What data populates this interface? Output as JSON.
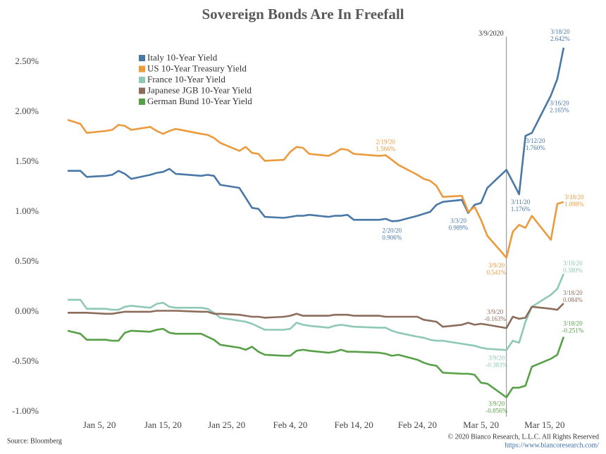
{
  "chart_data": {
    "type": "line",
    "title": "Sovereign Bonds Are In Freefall",
    "x": [
      "2019-12-31",
      "2020-01-02",
      "2020-01-03",
      "2020-01-06",
      "2020-01-07",
      "2020-01-08",
      "2020-01-09",
      "2020-01-10",
      "2020-01-13",
      "2020-01-14",
      "2020-01-15",
      "2020-01-16",
      "2020-01-17",
      "2020-01-21",
      "2020-01-22",
      "2020-01-23",
      "2020-01-24",
      "2020-01-27",
      "2020-01-28",
      "2020-01-29",
      "2020-01-30",
      "2020-01-31",
      "2020-02-03",
      "2020-02-04",
      "2020-02-05",
      "2020-02-06",
      "2020-02-07",
      "2020-02-10",
      "2020-02-11",
      "2020-02-12",
      "2020-02-13",
      "2020-02-14",
      "2020-02-18",
      "2020-02-19",
      "2020-02-20",
      "2020-02-21",
      "2020-02-24",
      "2020-02-25",
      "2020-02-26",
      "2020-02-27",
      "2020-02-28",
      "2020-03-02",
      "2020-03-03",
      "2020-03-04",
      "2020-03-05",
      "2020-03-06",
      "2020-03-09",
      "2020-03-10",
      "2020-03-11",
      "2020-03-12",
      "2020-03-13",
      "2020-03-16",
      "2020-03-17",
      "2020-03-18"
    ],
    "series": [
      {
        "name": "Italy 10-Year Yield",
        "color": "#4a78a6",
        "values": [
          1.41,
          1.41,
          1.35,
          1.36,
          1.37,
          1.41,
          1.38,
          1.33,
          1.37,
          1.39,
          1.4,
          1.43,
          1.38,
          1.36,
          1.37,
          1.36,
          1.27,
          1.24,
          1.14,
          1.04,
          1.03,
          0.95,
          0.94,
          0.95,
          0.96,
          0.96,
          0.97,
          0.95,
          0.96,
          0.96,
          0.97,
          0.92,
          0.92,
          0.93,
          0.906,
          0.91,
          0.96,
          0.98,
          1.0,
          1.07,
          1.1,
          1.12,
          0.989,
          1.07,
          1.09,
          1.24,
          1.42,
          1.3,
          1.176,
          1.76,
          1.79,
          2.165,
          2.33,
          2.642
        ]
      },
      {
        "name": "US 10-Year Treasury Yield",
        "color": "#eb9a3d",
        "values": [
          1.92,
          1.88,
          1.79,
          1.81,
          1.82,
          1.87,
          1.86,
          1.82,
          1.85,
          1.81,
          1.78,
          1.81,
          1.83,
          1.78,
          1.77,
          1.74,
          1.69,
          1.61,
          1.65,
          1.59,
          1.58,
          1.51,
          1.52,
          1.6,
          1.65,
          1.64,
          1.58,
          1.56,
          1.59,
          1.63,
          1.62,
          1.58,
          1.56,
          1.566,
          1.52,
          1.47,
          1.37,
          1.33,
          1.31,
          1.26,
          1.15,
          1.16,
          1.0,
          1.05,
          0.92,
          0.76,
          0.541,
          0.8,
          0.87,
          0.84,
          0.96,
          0.72,
          1.08,
          1.098
        ]
      },
      {
        "name": "France 10-Year Yield",
        "color": "#8ec8b7",
        "values": [
          0.12,
          0.12,
          0.03,
          0.03,
          0.02,
          0.02,
          0.05,
          0.06,
          0.04,
          0.08,
          0.09,
          0.05,
          0.04,
          0.04,
          0.03,
          -0.01,
          -0.06,
          -0.09,
          -0.1,
          -0.12,
          -0.15,
          -0.18,
          -0.18,
          -0.17,
          -0.11,
          -0.13,
          -0.14,
          -0.16,
          -0.14,
          -0.13,
          -0.14,
          -0.15,
          -0.16,
          -0.16,
          -0.19,
          -0.21,
          -0.25,
          -0.26,
          -0.28,
          -0.29,
          -0.29,
          -0.32,
          -0.33,
          -0.34,
          -0.36,
          -0.37,
          -0.383,
          -0.29,
          -0.31,
          -0.1,
          0.05,
          0.17,
          0.23,
          0.38
        ]
      },
      {
        "name": "Japanese JGB 10-Year Yield",
        "color": "#8c6d5c",
        "values": [
          -0.01,
          -0.01,
          -0.01,
          -0.02,
          -0.02,
          -0.01,
          0.0,
          0.0,
          0.0,
          0.01,
          0.01,
          0.01,
          0.01,
          0.0,
          0.0,
          -0.02,
          -0.02,
          -0.03,
          -0.04,
          -0.05,
          -0.05,
          -0.06,
          -0.05,
          -0.04,
          -0.02,
          -0.04,
          -0.04,
          -0.04,
          -0.03,
          -0.03,
          -0.03,
          -0.04,
          -0.04,
          -0.05,
          -0.05,
          -0.05,
          -0.05,
          -0.08,
          -0.09,
          -0.1,
          -0.15,
          -0.13,
          -0.11,
          -0.13,
          -0.12,
          -0.13,
          -0.163,
          -0.05,
          -0.07,
          -0.06,
          0.05,
          0.03,
          0.02,
          0.084
        ]
      },
      {
        "name": "German Bund 10-Year Yield",
        "color": "#58a048",
        "values": [
          -0.19,
          -0.22,
          -0.28,
          -0.28,
          -0.29,
          -0.29,
          -0.21,
          -0.19,
          -0.2,
          -0.18,
          -0.17,
          -0.21,
          -0.22,
          -0.22,
          -0.25,
          -0.28,
          -0.33,
          -0.36,
          -0.38,
          -0.35,
          -0.4,
          -0.43,
          -0.44,
          -0.44,
          -0.39,
          -0.38,
          -0.39,
          -0.41,
          -0.4,
          -0.38,
          -0.4,
          -0.4,
          -0.41,
          -0.42,
          -0.44,
          -0.43,
          -0.48,
          -0.51,
          -0.53,
          -0.54,
          -0.61,
          -0.62,
          -0.62,
          -0.63,
          -0.71,
          -0.72,
          -0.856,
          -0.76,
          -0.76,
          -0.74,
          -0.55,
          -0.47,
          -0.43,
          -0.251
        ]
      }
    ],
    "xlim": [
      "2019-12-30",
      "2020-03-23"
    ],
    "xticks": [
      {
        "value": "2020-01-05",
        "label": "Jan 5, 20"
      },
      {
        "value": "2020-01-15",
        "label": "Jan 15, 20"
      },
      {
        "value": "2020-01-25",
        "label": "Jan 25, 20"
      },
      {
        "value": "2020-02-04",
        "label": "Feb 4, 20"
      },
      {
        "value": "2020-02-14",
        "label": "Feb 14, 20"
      },
      {
        "value": "2020-02-24",
        "label": "Feb 24, 20"
      },
      {
        "value": "2020-03-05",
        "label": "Mar 5, 20"
      },
      {
        "value": "2020-03-15",
        "label": "Mar 15, 20"
      }
    ],
    "ylim": [
      -1.05,
      2.75
    ],
    "yticks": [
      {
        "value": -1,
        "label": "-1.00%"
      },
      {
        "value": -0.5,
        "label": "-0.50%"
      },
      {
        "value": 0,
        "label": "0.00%"
      },
      {
        "value": 0.5,
        "label": "0.50%"
      },
      {
        "value": 1,
        "label": "1.00%"
      },
      {
        "value": 1.5,
        "label": "1.50%"
      },
      {
        "value": 2,
        "label": "2.00%"
      },
      {
        "value": 2.5,
        "label": "2.50%"
      }
    ],
    "grid": false,
    "legend": "upper left",
    "vline": {
      "label": "3/9/2020"
    },
    "annotations": [
      {
        "date": "3/18/20",
        "value": 2.642,
        "label": "2.642%",
        "color": "#4a78a6"
      },
      {
        "date": "3/16/20",
        "value": 2.165,
        "label": "2.165%",
        "color": "#4a78a6"
      },
      {
        "date": "3/12/20",
        "value": 1.76,
        "label": "1.760%",
        "color": "#4a78a6"
      },
      {
        "date": "3/11/20",
        "value": 1.176,
        "label": "1.176%",
        "color": "#4a78a6"
      },
      {
        "date": "3/3/20",
        "value": 0.989,
        "label": "0.989%",
        "color": "#4a78a6"
      },
      {
        "date": "2/20/20",
        "value": 0.906,
        "label": "0.906%",
        "color": "#4a78a6"
      },
      {
        "date": "2/19/20",
        "value": 1.566,
        "label": "1.566%",
        "color": "#eb9a3d"
      },
      {
        "date": "3/9/20",
        "value": 0.541,
        "label": "0.541%",
        "color": "#eb9a3d"
      },
      {
        "date": "3/18/20",
        "value": 1.098,
        "label": "1.098%",
        "color": "#eb9a3d"
      },
      {
        "date": "3/18/20",
        "value": 0.38,
        "label": "0.380%",
        "color": "#8ec8b7"
      },
      {
        "date": "3/9/20",
        "value": -0.383,
        "label": "-0.383%",
        "color": "#8ec8b7"
      },
      {
        "date": "3/18/20",
        "value": 0.084,
        "label": "0.084%",
        "color": "#8c6d5c"
      },
      {
        "date": "3/9/20",
        "value": -0.163,
        "label": "-0.163%",
        "color": "#8c6d5c"
      },
      {
        "date": "3/18/20",
        "value": -0.251,
        "label": "-0.251%",
        "color": "#58a048"
      },
      {
        "date": "3/9/20",
        "value": -0.856,
        "label": "-0.856%",
        "color": "#58a048"
      }
    ],
    "source": "Source: Bloomberg",
    "copyright": "© 2020 Bianco Research, L.L.C. All Rights Reserved",
    "url": "https://www.biancoresearch.com/"
  }
}
